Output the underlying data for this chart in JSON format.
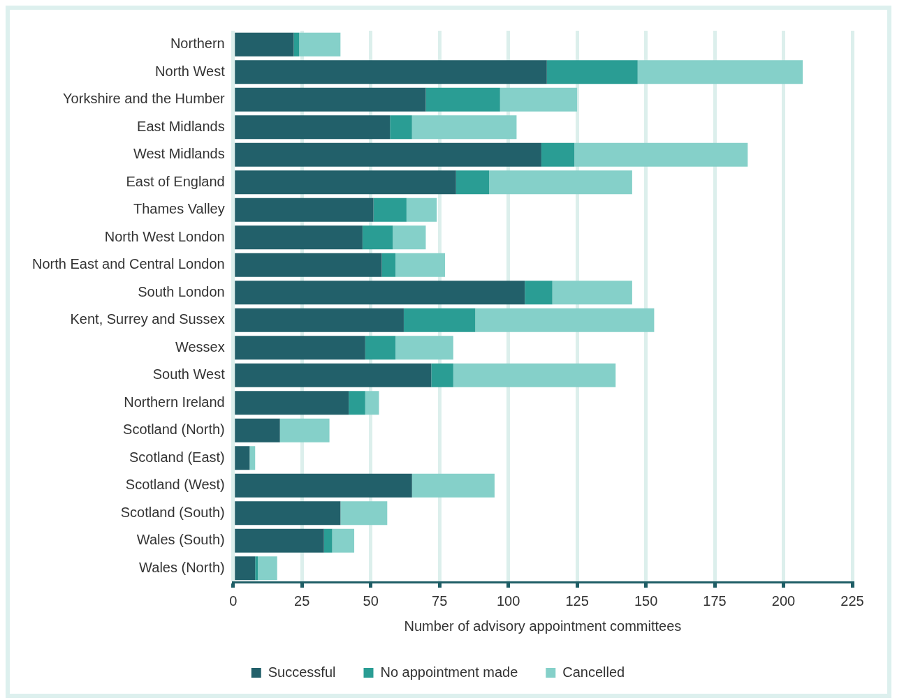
{
  "chart_data": {
    "type": "bar",
    "orientation": "horizontal",
    "stacked": true,
    "xlabel": "Number of advisory appointment committees",
    "categories": [
      "Northern",
      "North West",
      "Yorkshire and the Humber",
      "East Midlands",
      "West Midlands",
      "East of England",
      "Thames Valley",
      "North West London",
      "North East and Central London",
      "South London",
      "Kent, Surrey and Sussex",
      "Wessex",
      "South West",
      "Northern Ireland",
      "Scotland (North)",
      "Scotland (East)",
      "Scotland (West)",
      "Scotland (South)",
      "Wales (South)",
      "Wales (North)"
    ],
    "series": [
      {
        "name": "Successful",
        "color": "#22606a",
        "values": [
          22,
          114,
          70,
          57,
          112,
          81,
          51,
          47,
          54,
          106,
          62,
          48,
          72,
          42,
          17,
          6,
          65,
          39,
          33,
          8
        ]
      },
      {
        "name": "No appointment made",
        "color": "#2a9d94",
        "values": [
          2,
          33,
          27,
          8,
          12,
          12,
          12,
          11,
          5,
          10,
          26,
          11,
          8,
          6,
          0,
          0,
          0,
          0,
          3,
          1
        ]
      },
      {
        "name": "Cancelled",
        "color": "#85d0c9",
        "values": [
          15,
          60,
          28,
          38,
          63,
          52,
          11,
          12,
          18,
          29,
          65,
          21,
          59,
          5,
          18,
          2,
          30,
          17,
          8,
          7
        ]
      }
    ],
    "xlim": [
      0,
      225
    ],
    "xticks": [
      0,
      25,
      50,
      75,
      100,
      125,
      150,
      175,
      200,
      225
    ],
    "grid": "x",
    "legend": "bottom"
  }
}
